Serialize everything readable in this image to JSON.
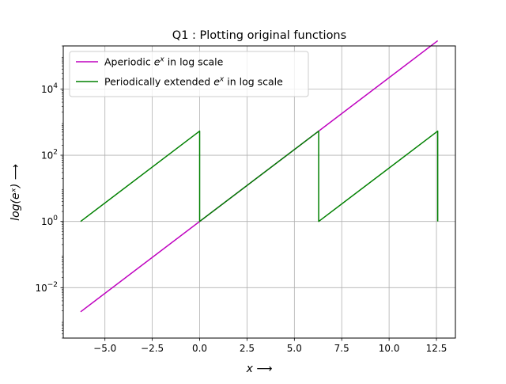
{
  "chart_data": {
    "type": "line",
    "title": "Q1 : Plotting original functions",
    "xlabel": "x ⟶",
    "ylabel": "log(eˣ) ⟶",
    "xlim": [
      -7.2,
      13.5
    ],
    "ylim": [
      0.0003,
      200000
    ],
    "y_scale": "log",
    "grid": true,
    "legend_position": "upper-left",
    "x_ticks": [
      -5.0,
      -2.5,
      0.0,
      2.5,
      5.0,
      7.5,
      10.0,
      12.5
    ],
    "x_tick_labels": [
      "−5.0",
      "−2.5",
      "0.0",
      "2.5",
      "5.0",
      "7.5",
      "10.0",
      "12.5"
    ],
    "y_ticks": [
      0.01,
      1,
      100,
      10000
    ],
    "y_tick_labels": [
      {
        "base": "10",
        "exp": "−2"
      },
      {
        "base": "10",
        "exp": "0"
      },
      {
        "base": "10",
        "exp": "2"
      },
      {
        "base": "10",
        "exp": "4"
      }
    ],
    "series": [
      {
        "name": "Aperiodic eˣ in log scale",
        "legend_prefix": "Aperiodic ",
        "legend_math": "e",
        "legend_sup": "x",
        "legend_suffix": " in log scale",
        "color": "#bf00bf",
        "x": [
          -6.2832,
          12.5664
        ],
        "y": [
          0.001867,
          286751
        ]
      },
      {
        "name": "Periodically extended eˣ in log scale",
        "legend_prefix": "Periodically extended ",
        "legend_math": "e",
        "legend_sup": "x",
        "legend_suffix": " in log scale",
        "color": "#008000",
        "x": [
          -6.2832,
          -0.0001,
          0.0001,
          6.2831,
          6.2833,
          12.5663,
          12.5664
        ],
        "y": [
          1,
          535.49,
          1,
          535.49,
          1,
          535.49,
          1
        ]
      }
    ]
  }
}
